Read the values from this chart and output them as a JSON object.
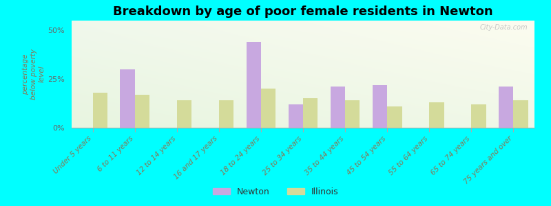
{
  "title": "Breakdown by age of poor female residents in Newton",
  "ylabel": "percentage\nbelow poverty\nlevel",
  "categories": [
    "Under 5 years",
    "6 to 11 years",
    "12 to 14 years",
    "16 and 17 years",
    "18 to 24 years",
    "25 to 34 years",
    "35 to 44 years",
    "45 to 54 years",
    "55 to 64 years",
    "65 to 74 years",
    "75 years and over"
  ],
  "newton_values": [
    0,
    30,
    0,
    0,
    44,
    12,
    21,
    22,
    0,
    0,
    21
  ],
  "illinois_values": [
    18,
    17,
    14,
    14,
    20,
    15,
    14,
    11,
    13,
    12,
    14
  ],
  "ylim": [
    0,
    55
  ],
  "yticks": [
    0,
    25,
    50
  ],
  "yticklabels": [
    "0%",
    "25%",
    "50%"
  ],
  "newton_color": "#c8a8e0",
  "illinois_color": "#d4db9a",
  "bg_color": "#00ffff",
  "bar_width": 0.35,
  "legend_newton": "Newton",
  "legend_illinois": "Illinois",
  "title_fontsize": 13,
  "axis_label_fontsize": 7.5,
  "watermark": "City-Data.com"
}
